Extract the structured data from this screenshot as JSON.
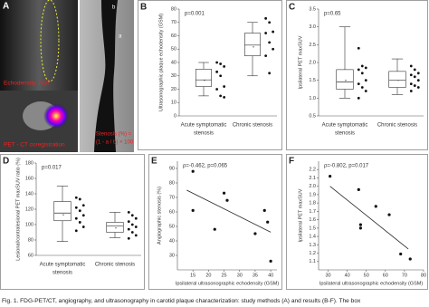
{
  "panel_a": {
    "label": "A",
    "texts": [
      "Echodensity, RGI",
      "PET - CT coregistration",
      "a",
      "b",
      "Stenosis (%) =",
      "(1 - a / b) × 100"
    ]
  },
  "chart_data": [
    {
      "type": "box",
      "label": "B",
      "annotation": "p=0.001",
      "ylabel": "Ultrasonographic plaque echodensity (GSM)",
      "categories": [
        [
          "Acute symptomatic",
          "stenosis"
        ],
        [
          "Chronic stenosis"
        ]
      ],
      "groups": [
        {
          "whisker_low": 15,
          "q1": 22,
          "median": 27,
          "q3": 35,
          "whisker_high": 40,
          "mean": 28,
          "points": [
            40,
            39,
            37,
            33,
            30,
            22,
            20,
            15,
            14
          ]
        },
        {
          "whisker_low": 30,
          "q1": 45,
          "median": 53,
          "q3": 62,
          "whisker_high": 70,
          "mean": 53,
          "points": [
            73,
            70,
            63,
            62,
            55,
            50,
            45,
            32
          ]
        }
      ],
      "ylim": [
        0,
        80
      ],
      "yticks": [
        0,
        10,
        20,
        30,
        40,
        50,
        60,
        70,
        80
      ]
    },
    {
      "type": "box",
      "label": "C",
      "annotation": "p=0.65",
      "ylabel": "Ipsilateral PET maxSUV",
      "categories": [
        [
          "Acute symptomatic",
          "stenosis"
        ],
        [
          "Chronic stenosis"
        ]
      ],
      "groups": [
        {
          "whisker_low": 1.0,
          "q1": 1.25,
          "median": 1.45,
          "q3": 1.8,
          "whisker_high": 3.0,
          "mean": 1.55,
          "points": [
            2.4,
            1.9,
            1.85,
            1.8,
            1.7,
            1.5,
            1.4,
            1.3,
            1.2,
            1.0
          ]
        },
        {
          "whisker_low": 1.1,
          "q1": 1.3,
          "median": 1.5,
          "q3": 1.75,
          "whisker_high": 2.1,
          "mean": 1.55,
          "points": [
            1.9,
            1.8,
            1.7,
            1.65,
            1.6,
            1.5,
            1.4,
            1.35,
            1.3,
            1.2
          ]
        }
      ],
      "ylim": [
        0.5,
        3.5
      ],
      "yticks": [
        0.5,
        {
          "value": 1,
          "label": "1.0"
        },
        1.5,
        {
          "value": 2,
          "label": "2.0"
        },
        2.5,
        {
          "value": 3,
          "label": "3.0"
        },
        3.5
      ]
    },
    {
      "type": "box",
      "label": "D",
      "annotation": "p=0.017",
      "ylabel": "Lesional/contralesional PET maxSUV ratio (%)",
      "categories": [
        [
          "Acute symptomatic",
          "stenosis"
        ],
        [
          "Chronic stenosis"
        ]
      ],
      "groups": [
        {
          "whisker_low": 78,
          "q1": 105,
          "median": 115,
          "q3": 130,
          "whisker_high": 150,
          "mean": 115,
          "points": [
            135,
            133,
            125,
            122,
            118,
            112,
            108,
            103,
            97,
            92
          ]
        },
        {
          "whisker_low": 83,
          "q1": 90,
          "median": 98,
          "q3": 103,
          "whisker_high": 116,
          "mean": 98,
          "points": [
            116,
            112,
            108,
            104,
            100,
            97,
            94,
            90,
            86,
            82
          ]
        }
      ],
      "ylim": [
        60,
        180
      ],
      "yticks": [
        60,
        80,
        100,
        120,
        140,
        160,
        180
      ]
    },
    {
      "type": "scatter",
      "label": "E",
      "annotation": "ρ=-0.462, p=0.065",
      "xlabel": "Ipsilateral ultrasonographic echodensity (GSM)",
      "ylabel": "Angiographic stenosis (%)",
      "x": [
        15,
        15,
        22,
        25,
        26,
        35,
        38,
        39,
        40
      ],
      "y": [
        61,
        88,
        48,
        73,
        68,
        45,
        61,
        53,
        26
      ],
      "trend": {
        "x": [
          13,
          40
        ],
        "y": [
          75,
          46
        ]
      },
      "xlim": [
        10,
        42
      ],
      "xticks": [
        15,
        20,
        25,
        30,
        35,
        40
      ],
      "ylim": [
        20,
        95
      ],
      "yticks": [
        30,
        40,
        50,
        60,
        70,
        80,
        90
      ]
    },
    {
      "type": "scatter",
      "label": "F",
      "annotation": "ρ=-0.802, p=0.017",
      "xlabel": "Ipsilateral ultrasonographic echodensity (GSM)",
      "ylabel": "Ipsilateral PET maxSUV",
      "x": [
        31,
        46,
        47,
        47,
        55,
        62,
        68,
        73
      ],
      "y": [
        2.12,
        1.96,
        1.54,
        1.5,
        1.76,
        1.66,
        1.19,
        1.13
      ],
      "trend": {
        "x": [
          31,
          72
        ],
        "y": [
          2.0,
          1.25
        ]
      },
      "xlim": [
        25,
        80
      ],
      "xticks": [
        30,
        40,
        50,
        60,
        70,
        80
      ],
      "ylim": [
        1.0,
        2.3
      ],
      "yticks": [
        1.1,
        1.2,
        1.3,
        1.4,
        1.5,
        1.6,
        1.7,
        1.8,
        1.9,
        {
          "value": 2,
          "label": "2.0"
        },
        2.1,
        2.2
      ]
    }
  ],
  "caption": "Fig. 1. FDG-PET/CT, angiography, and ultrasonography in carotid plaque characterization: study methods (A) and results (B-F). The box"
}
